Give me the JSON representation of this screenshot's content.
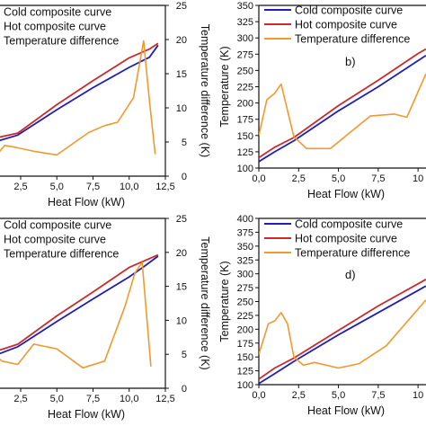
{
  "colors": {
    "cold": "#1f1fb4",
    "hot": "#cc2a2a",
    "diff": "#f2992e",
    "axis": "#111111"
  },
  "chart_data": [
    {
      "type": "line",
      "panel": "a",
      "panel_label": "",
      "xlabel": "Heat Flow (kW)",
      "ylabel": "",
      "y2label": "Temperature difference (K)",
      "xlim": [
        0.7,
        12.5
      ],
      "x_ticks": [
        "2,5",
        "5,0",
        "7,5",
        "10,0",
        "12,5"
      ],
      "ylim": [
        80,
        350
      ],
      "y2lim": [
        0,
        25
      ],
      "y2_ticks": [
        "0",
        "5",
        "10",
        "15",
        "20",
        "25"
      ],
      "legend": [
        "Cold composite curve",
        "Hot composite curve",
        "Temperature difference"
      ],
      "series": [
        {
          "name": "Cold composite curve",
          "axis": "left",
          "x": [
            0.7,
            2.3,
            5.0,
            7.5,
            10.0,
            11.4,
            12.0
          ],
          "y": [
            134,
            145,
            185,
            220,
            252,
            268,
            287
          ]
        },
        {
          "name": "Hot composite curve",
          "axis": "left",
          "x": [
            0.7,
            2.3,
            5.0,
            7.5,
            10.0,
            11.4,
            12.0
          ],
          "y": [
            140,
            148,
            193,
            231,
            267,
            281,
            290
          ]
        },
        {
          "name": "Temperature difference",
          "axis": "right",
          "x": [
            0.7,
            1.0,
            1.4,
            2.2,
            3.5,
            5.0,
            7.2,
            8.3,
            9.2,
            10.3,
            11.0,
            11.4,
            11.8
          ],
          "y": [
            7.0,
            3.5,
            4.5,
            4.2,
            3.6,
            3.1,
            6.4,
            7.4,
            7.9,
            11.5,
            19.8,
            11.0,
            3.2
          ]
        }
      ]
    },
    {
      "type": "line",
      "panel": "b",
      "panel_label": "b)",
      "xlabel": "Heat Flow (kW)",
      "ylabel": "Temperature (K)",
      "xlim": [
        0,
        10.5
      ],
      "x_ticks": [
        "0,0",
        "2,5",
        "5,0",
        "7,5",
        "10"
      ],
      "ylim": [
        100,
        350
      ],
      "y_ticks": [
        "100",
        "125",
        "150",
        "175",
        "200",
        "225",
        "250",
        "275",
        "300",
        "325",
        "350"
      ],
      "legend": [
        "Cold composite curve",
        "Hot composite curve",
        "Temperature difference"
      ],
      "series": [
        {
          "name": "Cold composite curve",
          "axis": "left",
          "x": [
            0.0,
            1.0,
            2.2,
            5.0,
            7.5,
            10.0,
            10.5
          ],
          "y": [
            110,
            125,
            142,
            188,
            225,
            265,
            273
          ]
        },
        {
          "name": "Hot composite curve",
          "axis": "left",
          "x": [
            0.0,
            1.0,
            2.2,
            5.0,
            7.5,
            10.0,
            10.5
          ],
          "y": [
            116,
            132,
            147,
            196,
            235,
            276,
            283
          ]
        },
        {
          "name": "Temperature difference",
          "axis": "left",
          "x": [
            0.0,
            0.5,
            1.0,
            1.4,
            2.2,
            3.0,
            4.5,
            5.5,
            7.0,
            8.5,
            9.3,
            10.5
          ],
          "y": [
            150,
            205,
            215,
            229,
            148,
            130,
            130,
            150,
            180,
            183,
            178,
            245
          ]
        }
      ]
    },
    {
      "type": "line",
      "panel": "c",
      "panel_label": "",
      "xlabel": "Heat Flow (kW)",
      "ylabel": "",
      "y2label": "Temperature difference (K)",
      "xlim": [
        0.7,
        12.5
      ],
      "x_ticks": [
        "2,5",
        "5,0",
        "7,5",
        "10,0",
        "12,5"
      ],
      "ylim": [
        80,
        350
      ],
      "y2lim": [
        0,
        25
      ],
      "y2_ticks": [
        "0",
        "5",
        "10",
        "15",
        "20",
        "25"
      ],
      "legend": [
        "Cold composite curve",
        "Hot composite curve",
        "Temperature difference"
      ],
      "series": [
        {
          "name": "Cold composite curve",
          "axis": "left",
          "x": [
            0.7,
            2.3,
            5.0,
            7.5,
            10.0,
            11.0,
            12.0
          ],
          "y": [
            132,
            146,
            186,
            222,
            257,
            273,
            290
          ]
        },
        {
          "name": "Hot composite curve",
          "axis": "left",
          "x": [
            0.7,
            2.3,
            5.0,
            7.5,
            10.0,
            11.0,
            12.0
          ],
          "y": [
            138,
            150,
            195,
            233,
            272,
            282,
            292
          ]
        },
        {
          "name": "Temperature difference",
          "axis": "right",
          "x": [
            0.7,
            1.2,
            2.3,
            3.4,
            5.0,
            6.8,
            8.3,
            9.7,
            10.4,
            10.9,
            11.5
          ],
          "y": [
            5.0,
            4.0,
            3.5,
            6.5,
            5.8,
            3.0,
            4.0,
            12.0,
            17.0,
            18.5,
            3.2
          ]
        }
      ]
    },
    {
      "type": "line",
      "panel": "d",
      "panel_label": "d)",
      "xlabel": "Heat Flow (kW)",
      "ylabel": "Temperature (K)",
      "xlim": [
        0,
        10.5
      ],
      "x_ticks": [
        "0,0",
        "2,5",
        "5,0",
        "7,5",
        "10"
      ],
      "ylim": [
        100,
        400
      ],
      "y_ticks": [
        "100",
        "125",
        "150",
        "175",
        "200",
        "225",
        "250",
        "275",
        "300",
        "325",
        "350",
        "375",
        "400"
      ],
      "legend": [
        "Cold composite curve",
        "Hot composite curve",
        "Temperature difference"
      ],
      "series": [
        {
          "name": "Cold composite curve",
          "axis": "left",
          "x": [
            0.0,
            1.0,
            2.2,
            5.0,
            7.5,
            10.0,
            10.5
          ],
          "y": [
            102,
            120,
            142,
            190,
            230,
            270,
            278
          ]
        },
        {
          "name": "Hot composite curve",
          "axis": "left",
          "x": [
            0.0,
            1.0,
            2.2,
            5.0,
            7.5,
            10.0,
            10.5
          ],
          "y": [
            110,
            130,
            148,
            198,
            242,
            282,
            290
          ]
        },
        {
          "name": "Temperature difference",
          "axis": "left",
          "x": [
            0.0,
            0.6,
            1.0,
            1.4,
            1.8,
            2.2,
            2.8,
            3.5,
            5.0,
            6.3,
            8.0,
            10.5
          ],
          "y": [
            155,
            210,
            215,
            230,
            210,
            150,
            135,
            140,
            130,
            138,
            170,
            253
          ]
        }
      ]
    }
  ]
}
